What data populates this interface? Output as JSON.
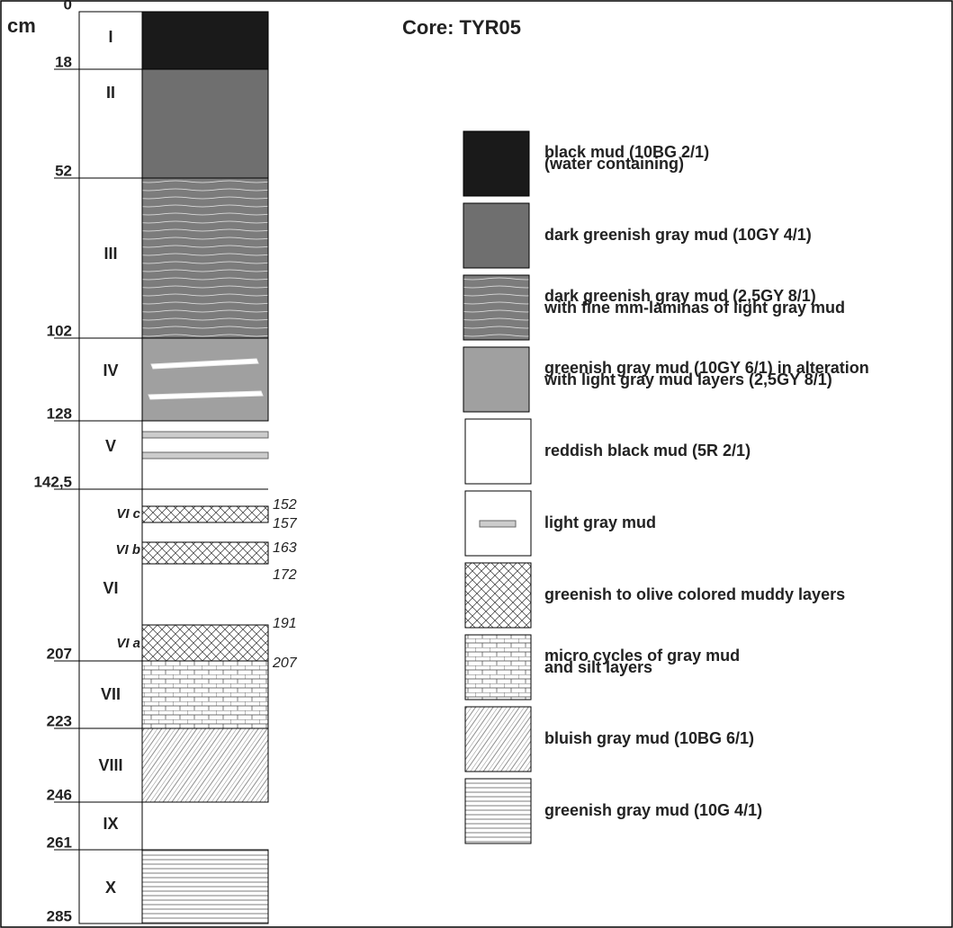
{
  "header": {
    "unit": "cm",
    "title": "Core: TYR05"
  },
  "depths": [
    "0",
    "18",
    "52",
    "102",
    "128",
    "142,5",
    "207",
    "223",
    "246",
    "261",
    "285"
  ],
  "units": [
    "I",
    "II",
    "III",
    "IV",
    "V",
    "VI",
    "VII",
    "VIII",
    "IX",
    "X"
  ],
  "subunits": [
    {
      "label": "VI c",
      "top": "152",
      "bottom": "157"
    },
    {
      "label": "VI b",
      "top": "163",
      "bottom": "172"
    },
    {
      "label": "VI a",
      "top": "191",
      "bottom": "207"
    }
  ],
  "legend": [
    {
      "lines": [
        "black mud (10BG 2/1)",
        "(water containing)"
      ]
    },
    {
      "lines": [
        "dark greenish gray mud (10GY 4/1)"
      ]
    },
    {
      "lines": [
        "dark greenish gray mud (2,5GY 8/1)",
        "with fine mm-laminas of light gray mud"
      ]
    },
    {
      "lines": [
        "greenish gray mud  (10GY 6/1) in alteration",
        "with light gray mud layers (2,5GY 8/1)"
      ]
    },
    {
      "lines": [
        "reddish black mud (5R 2/1)"
      ]
    },
    {
      "lines": [
        "light gray mud"
      ]
    },
    {
      "lines": [
        "greenish to olive colored muddy layers"
      ]
    },
    {
      "lines": [
        "micro cycles of gray mud",
        "and silt layers"
      ]
    },
    {
      "lines": [
        "bluish gray mud (10BG 6/1)"
      ]
    },
    {
      "lines": [
        "greenish gray mud (10G 4/1)"
      ]
    }
  ]
}
